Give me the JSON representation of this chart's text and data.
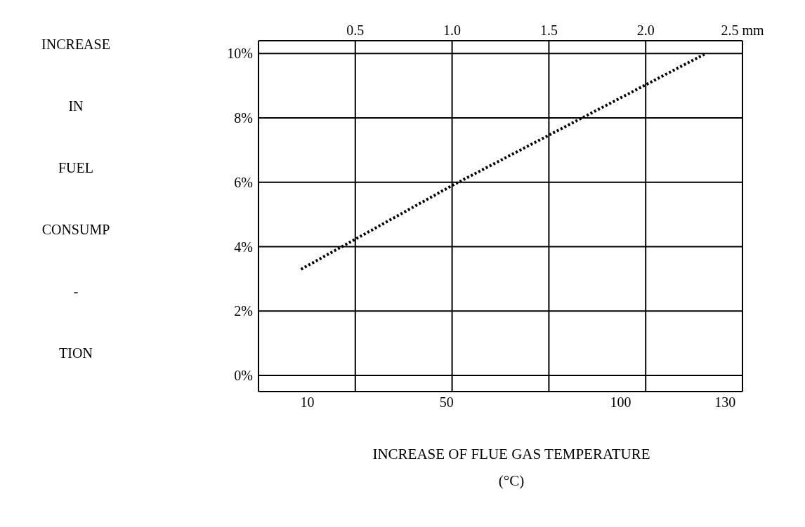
{
  "chart_data": {
    "type": "line",
    "ylabel": "INCREASE IN FUEL CONSUMP - TION",
    "xlabel": "INCREASE OF FLUE GAS TEMPERATURE (°C)",
    "xlim": [
      -4,
      135
    ],
    "xticks": [
      10,
      50,
      100,
      130
    ],
    "x2lim": [
      0,
      2.5
    ],
    "x2ticks": [
      0.5,
      {
        "value": 1,
        "label": "1.0"
      },
      1.5,
      {
        "value": 2,
        "label": "2.0"
      },
      {
        "value": 2.5,
        "label": "2.5 mm"
      }
    ],
    "ylim": [
      -0.5,
      10.4
    ],
    "yticks": [
      {
        "value": 0,
        "label": "0%"
      },
      {
        "value": 2,
        "label": "2%"
      },
      {
        "value": 4,
        "label": "4%"
      },
      {
        "value": 6,
        "label": "6%"
      },
      {
        "value": 8,
        "label": "8%"
      },
      {
        "value": 10,
        "label": "10%"
      }
    ],
    "grid": true,
    "marker": "none",
    "line_style": "dotted",
    "series": [
      {
        "axis": "x2",
        "color": "#000000",
        "x": [
          0.22,
          1.0,
          2.31
        ],
        "values": [
          3.3,
          5.9,
          10.0
        ]
      }
    ]
  }
}
